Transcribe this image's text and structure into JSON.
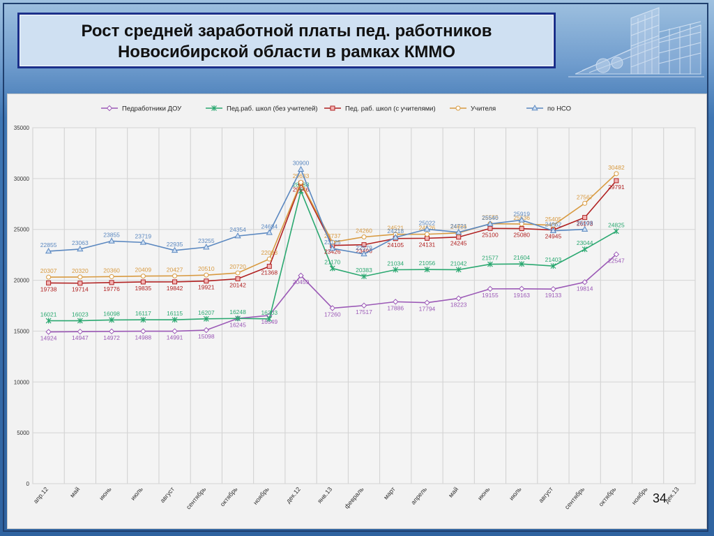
{
  "slide": {
    "title_line1": "Рост средней заработной платы пед. работников",
    "title_line2": "Новосибирской области в рамках КММО",
    "page_number": "34"
  },
  "colors": {
    "dou": "#9b59b6",
    "school_no_teachers": "#2aa870",
    "school_with_teachers": "#b02020",
    "teachers": "#d89a40",
    "nso": "#5b88c0"
  },
  "chart_data": {
    "type": "line",
    "title": "",
    "xlabel": "",
    "ylabel": "",
    "ylim": [
      0,
      35000
    ],
    "yticks": [
      0,
      5000,
      10000,
      15000,
      20000,
      25000,
      30000,
      35000
    ],
    "grid": true,
    "legend_position": "top",
    "categories": [
      "апр.12",
      "май",
      "июнь",
      "июль",
      "август",
      "сентябрь",
      "октябрь",
      "ноябрь",
      "дек.12",
      "янв.13",
      "февраль",
      "март",
      "апрель",
      "май",
      "июнь",
      "июль",
      "август",
      "сентябрь",
      "октябрь",
      "ноябрь",
      "дек.13"
    ],
    "series": [
      {
        "name": "Педработники ДОУ",
        "color_key": "dou",
        "marker": "diamond",
        "label_pos": "below",
        "values": [
          14924,
          14947,
          14972,
          14988,
          14991,
          15098,
          16245,
          16549,
          20459,
          17260,
          17517,
          17886,
          17794,
          18223,
          19155,
          19163,
          19133,
          19814,
          22547,
          null,
          null
        ]
      },
      {
        "name": "Пед.раб. школ (без учителей)",
        "color_key": "school_no_teachers",
        "marker": "star",
        "label_pos": "above",
        "values": [
          16021,
          16023,
          16098,
          16117,
          16115,
          16207,
          16248,
          16203,
          28788,
          21170,
          20383,
          21034,
          21056,
          21042,
          21577,
          21604,
          21403,
          23044,
          24825,
          null,
          null
        ]
      },
      {
        "name": "Пед. раб. школ (с учителями)",
        "color_key": "school_with_teachers",
        "marker": "square",
        "label_pos": "below",
        "values": [
          19738,
          19714,
          19776,
          19835,
          19842,
          19921,
          20142,
          21368,
          29546,
          23426,
          23496,
          24105,
          24131,
          24245,
          25100,
          25080,
          24945,
          26173,
          29791,
          null,
          null
        ]
      },
      {
        "name": "Учителя",
        "color_key": "teachers",
        "marker": "circle",
        "label_pos": "above",
        "values": [
          20307,
          20320,
          20360,
          20409,
          20427,
          20510,
          20720,
          22093,
          29633,
          23737,
          24260,
          24521,
          24526,
          24656,
          25555,
          25536,
          25405,
          27567,
          30482,
          null,
          null
        ]
      },
      {
        "name": "по НСО",
        "color_key": "nso",
        "marker": "triangle",
        "label_pos": "above",
        "values": [
          22855,
          23063,
          23855,
          23719,
          22935,
          23255,
          24354,
          24684,
          30900,
          23125,
          22579,
          24218,
          25022,
          24721,
          25540,
          25919,
          24862,
          25008,
          null,
          null,
          null
        ]
      }
    ]
  }
}
